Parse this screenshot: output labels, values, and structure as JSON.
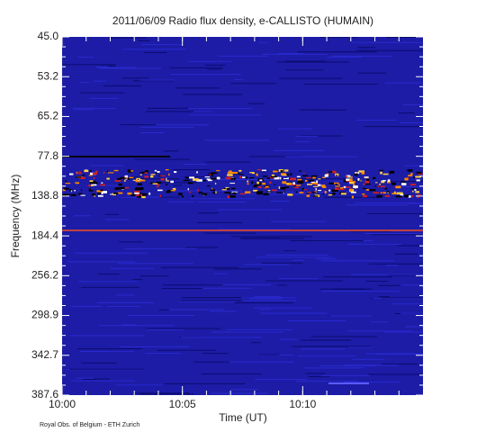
{
  "chart_data": {
    "type": "spectrogram",
    "title": "2011/06/09  Radio flux density, e-CALLISTO (HUMAIN)",
    "xlabel": "Time (UT)",
    "ylabel": "Frequency (MHz)",
    "footer": "Royal Obs. of Belgium - ETH Zurich",
    "xlim": [
      "10:00",
      "10:15"
    ],
    "xticks": [
      "10:00",
      "10:05",
      "10:10"
    ],
    "yticks": [
      {
        "value": 45.0,
        "label": "45.0"
      },
      {
        "value": 53.2,
        "label": "53.2"
      },
      {
        "value": 65.2,
        "label": "65.2"
      },
      {
        "value": 77.8,
        "label": "77.8"
      },
      {
        "value": 138.8,
        "label": "138.8"
      },
      {
        "value": 184.4,
        "label": "184.4"
      },
      {
        "value": 256.2,
        "label": "256.2"
      },
      {
        "value": 298.9,
        "label": "298.9"
      },
      {
        "value": 342.7,
        "label": "342.7"
      },
      {
        "value": 387.6,
        "label": "387.6"
      }
    ],
    "color": "#1c1ca6"
  }
}
